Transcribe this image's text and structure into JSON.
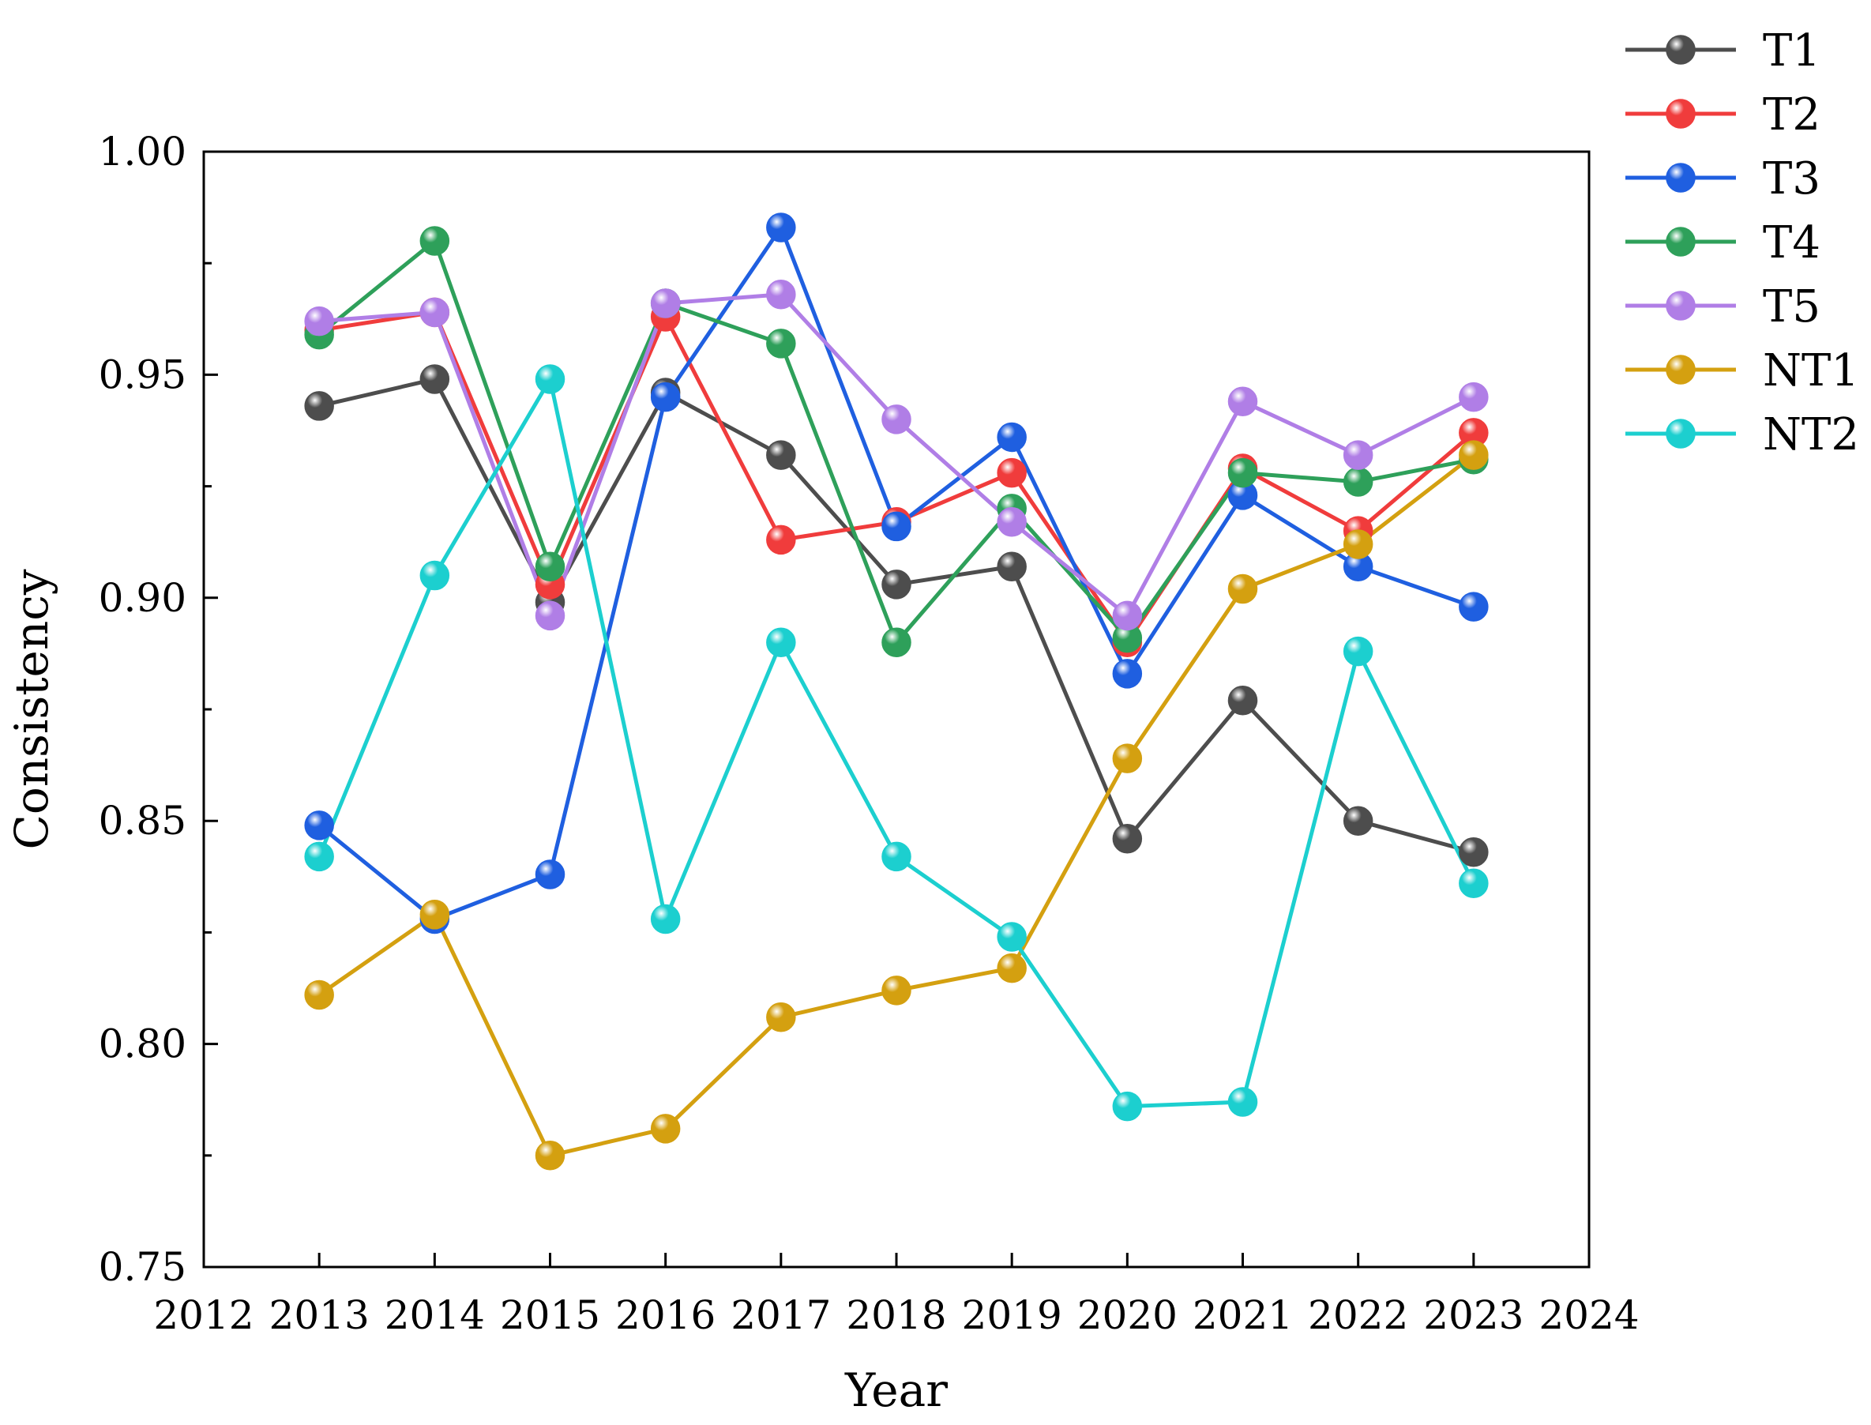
{
  "chart_data": {
    "type": "line",
    "title": "",
    "xlabel": "Year",
    "ylabel": "Consistency",
    "xlim": [
      2012,
      2024
    ],
    "ylim": [
      0.75,
      1.0
    ],
    "x_ticks": [
      2012,
      2013,
      2014,
      2015,
      2016,
      2017,
      2018,
      2019,
      2020,
      2021,
      2022,
      2023,
      2024
    ],
    "y_ticks": [
      0.75,
      0.8,
      0.85,
      0.9,
      0.95,
      1.0
    ],
    "y_tick_labels": [
      "0.75",
      "0.80",
      "0.85",
      "0.90",
      "0.95",
      "1.00"
    ],
    "legend_position": "top-right",
    "x": [
      2013,
      2014,
      2015,
      2016,
      2017,
      2018,
      2019,
      2020,
      2021,
      2022,
      2023
    ],
    "series": [
      {
        "name": "T1",
        "color": "#4d4d4d",
        "values": [
          0.943,
          0.949,
          0.899,
          0.946,
          0.932,
          0.903,
          0.907,
          0.846,
          0.877,
          0.85,
          0.843
        ]
      },
      {
        "name": "T2",
        "color": "#f03c3c",
        "values": [
          0.96,
          0.964,
          0.903,
          0.963,
          0.913,
          0.917,
          0.928,
          0.89,
          0.929,
          0.915,
          0.937
        ]
      },
      {
        "name": "T3",
        "color": "#1f5fe0",
        "values": [
          0.849,
          0.828,
          0.838,
          0.945,
          0.983,
          0.916,
          0.936,
          0.883,
          0.923,
          0.907,
          0.898
        ]
      },
      {
        "name": "T4",
        "color": "#2ea05a",
        "values": [
          0.959,
          0.98,
          0.907,
          0.966,
          0.957,
          0.89,
          0.92,
          0.891,
          0.928,
          0.926,
          0.931
        ]
      },
      {
        "name": "T5",
        "color": "#b07ee6",
        "values": [
          0.962,
          0.964,
          0.896,
          0.966,
          0.968,
          0.94,
          0.917,
          0.896,
          0.944,
          0.932,
          0.945
        ]
      },
      {
        "name": "NT1",
        "color": "#d4a010",
        "values": [
          0.811,
          0.829,
          0.775,
          0.781,
          0.806,
          0.812,
          0.817,
          0.864,
          0.902,
          0.912,
          0.932
        ]
      },
      {
        "name": "NT2",
        "color": "#1ccfcf",
        "values": [
          0.842,
          0.905,
          0.949,
          0.828,
          0.89,
          0.842,
          0.824,
          0.786,
          0.787,
          0.888,
          0.836
        ]
      }
    ]
  }
}
